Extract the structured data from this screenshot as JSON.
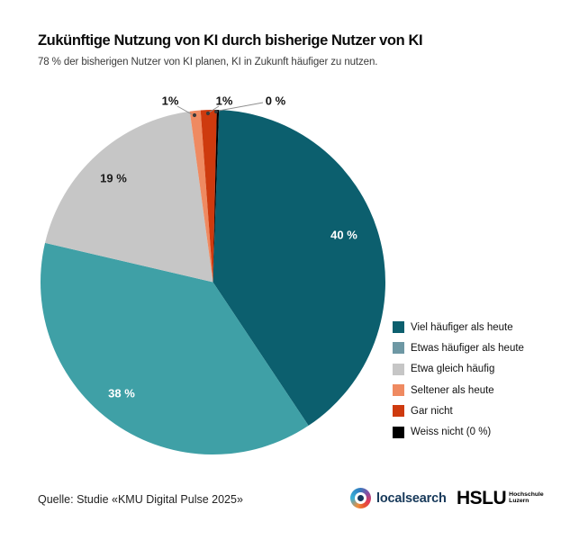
{
  "header": {
    "title": "Zukünftige Nutzung von KI durch bisherige Nutzer von KI",
    "subtitle": "78 % der bisherigen Nutzer von KI planen, KI in Zukunft häufiger zu nutzen."
  },
  "chart_data": {
    "type": "pie",
    "title": "Zukünftige Nutzung von KI durch bisherige Nutzer von KI",
    "unit": "%",
    "legend_position": "right",
    "start_angle_deg": 2,
    "segments": [
      {
        "label": "Viel häufiger als heute",
        "value": 40,
        "display": "40 %",
        "color": "#0C5F6E",
        "legend_color": "#0C5F6E",
        "label_placement": "inside",
        "label_color": "#FFFFFF",
        "render_weight": 40.1
      },
      {
        "label": "Etwas häufiger als heute",
        "value": 38,
        "display": "38 %",
        "color": "#3FA0A6",
        "legend_color": "#6E98A4",
        "label_placement": "inside",
        "label_color": "#FFFFFF",
        "render_weight": 38.0
      },
      {
        "label": "Etwa gleich häufig",
        "value": 19,
        "display": "19 %",
        "color": "#C6C6C6",
        "legend_color": "#C6C6C6",
        "label_placement": "inside",
        "label_color": "#1A1A1A",
        "render_weight": 19.2
      },
      {
        "label": "Seltener als heute",
        "value": 1,
        "display": "1%",
        "color": "#EF8A61",
        "legend_color": "#EF8A61",
        "label_placement": "outside",
        "label_color": "#111111",
        "render_weight": 1.0
      },
      {
        "label": "Gar nicht",
        "value": 1,
        "display": "1%",
        "color": "#CE3A0E",
        "legend_color": "#CE3A0E",
        "label_placement": "outside",
        "label_color": "#111111",
        "render_weight": 1.5
      },
      {
        "label": "Weiss nicht (0 %)",
        "value": 0,
        "display": "0 %",
        "color": "#000000",
        "legend_color": "#000000",
        "label_placement": "outside",
        "label_color": "#111111",
        "render_weight": 0.2
      }
    ]
  },
  "footer": {
    "source": "Quelle: Studie «KMU Digital Pulse 2025»",
    "localsearch_label": "localsearch",
    "hslu_label": "HSLU",
    "hslu_sub1": "Hochschule",
    "hslu_sub2": "Luzern"
  }
}
